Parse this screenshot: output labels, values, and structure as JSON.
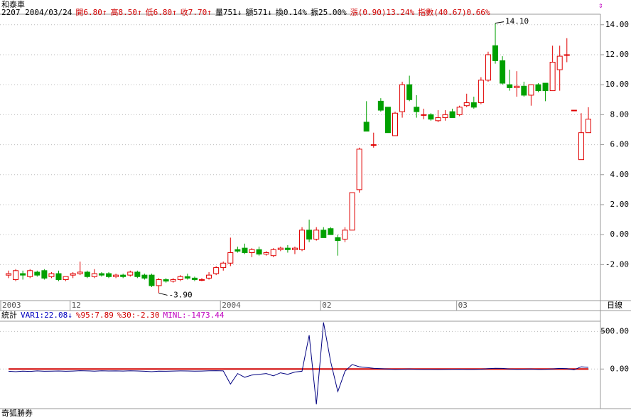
{
  "chart_data": {
    "type": "candlestick",
    "title": "和泰車",
    "info": [
      {
        "text": "2207 2004/03/24",
        "color": "#000000"
      },
      {
        "text": "開6.80↑",
        "color": "#d00000"
      },
      {
        "text": "高8.50↑",
        "color": "#d00000"
      },
      {
        "text": "低6.80↑",
        "color": "#d00000"
      },
      {
        "text": "收7.70↑",
        "color": "#d00000"
      },
      {
        "text": "量751↓",
        "color": "#000000"
      },
      {
        "text": "額571↓",
        "color": "#000000"
      },
      {
        "text": "換0.14%",
        "color": "#000000"
      },
      {
        "text": "振25.00%",
        "color": "#000000"
      },
      {
        "text": "漲(0.90)13.24%",
        "color": "#d00000"
      },
      {
        "text": "指數(40.67)0.66%",
        "color": "#d00000"
      }
    ],
    "period": "日線",
    "footer": "奇狐勝券",
    "up_color": "#e00000",
    "down_color": "#00a000",
    "ylim": [
      -4.4,
      14.7
    ],
    "yticks": [
      {
        "value": 14,
        "label": "14.00"
      },
      {
        "value": 12,
        "label": "12.00"
      },
      {
        "value": 10,
        "label": "10.00"
      },
      {
        "value": 8,
        "label": "8.00"
      },
      {
        "value": 6,
        "label": "6.00"
      },
      {
        "value": 4,
        "label": "4.00"
      },
      {
        "value": 2,
        "label": "2.00"
      },
      {
        "value": 0,
        "label": "0.00"
      },
      {
        "value": -2,
        "label": "-2.00"
      }
    ],
    "annotations": [
      {
        "index": 68,
        "value": 14.1,
        "label": "14.10"
      },
      {
        "index": 21,
        "value": -3.9,
        "label": "-3.90"
      }
    ],
    "categories": [
      "2003",
      null,
      null,
      null,
      null,
      null,
      null,
      null,
      null,
      "12",
      null,
      null,
      null,
      null,
      null,
      null,
      null,
      null,
      null,
      null,
      null,
      null,
      null,
      null,
      null,
      null,
      null,
      null,
      null,
      null,
      "2004",
      null,
      null,
      null,
      null,
      null,
      null,
      null,
      null,
      null,
      null,
      null,
      null,
      null,
      "02",
      null,
      null,
      null,
      null,
      null,
      null,
      null,
      null,
      null,
      null,
      null,
      null,
      null,
      null,
      null,
      null,
      null,
      null,
      "03",
      null,
      null,
      null,
      null,
      null,
      null,
      null,
      null,
      null,
      null,
      null,
      null,
      null,
      null,
      null,
      null,
      null,
      null
    ],
    "candles": [
      [
        -2.7,
        -2.4,
        -2.9,
        -2.6
      ],
      [
        -3.0,
        -2.3,
        -3.1,
        -2.4
      ],
      [
        -2.6,
        -2.4,
        -3.0,
        -2.7
      ],
      [
        -2.8,
        -2.3,
        -2.9,
        -2.4
      ],
      [
        -2.5,
        -2.4,
        -2.8,
        -2.7
      ],
      [
        -2.4,
        -2.3,
        -3.0,
        -2.9
      ],
      [
        -2.8,
        -2.5,
        -2.9,
        -2.6
      ],
      [
        -2.6,
        -2.4,
        -3.1,
        -3.0
      ],
      [
        -3.0,
        -2.8,
        -3.1,
        -2.8
      ],
      [
        -2.7,
        -2.5,
        -2.9,
        -2.6
      ],
      [
        -2.6,
        -1.8,
        -2.7,
        -2.5
      ],
      [
        -2.5,
        -2.4,
        -2.9,
        -2.8
      ],
      [
        -2.8,
        -2.3,
        -2.9,
        -2.6
      ],
      [
        -2.6,
        -2.5,
        -2.8,
        -2.7
      ],
      [
        -2.6,
        -2.5,
        -2.9,
        -2.8
      ],
      [
        -2.8,
        -2.6,
        -2.9,
        -2.7
      ],
      [
        -2.7,
        -2.6,
        -2.9,
        -2.8
      ],
      [
        -2.7,
        -2.4,
        -2.8,
        -2.5
      ],
      [
        -2.5,
        -2.4,
        -2.9,
        -2.8
      ],
      [
        -2.7,
        -2.6,
        -3.0,
        -2.9
      ],
      [
        -2.7,
        -2.6,
        -3.5,
        -3.4
      ],
      [
        -3.4,
        -2.9,
        -3.9,
        -3.0
      ],
      [
        -3.0,
        -2.9,
        -3.2,
        -3.1
      ],
      [
        -3.1,
        -2.9,
        -3.2,
        -3.0
      ],
      [
        -3.0,
        -2.7,
        -3.1,
        -2.8
      ],
      [
        -2.8,
        -2.6,
        -3.0,
        -2.9
      ],
      [
        -2.9,
        -2.8,
        -3.1,
        -3.0
      ],
      [
        -3.0,
        -2.9,
        -3.1,
        -3.0
      ],
      [
        -2.9,
        -2.5,
        -3.0,
        -2.7
      ],
      [
        -2.6,
        -2.1,
        -2.7,
        -2.2
      ],
      [
        -2.2,
        -1.8,
        -2.4,
        -1.9
      ],
      [
        -1.9,
        -0.2,
        -2.1,
        -1.2
      ],
      [
        -1.0,
        -0.8,
        -1.2,
        -1.1
      ],
      [
        -0.9,
        -0.6,
        -1.3,
        -1.2
      ],
      [
        -1.2,
        -0.9,
        -1.5,
        -1.0
      ],
      [
        -1.0,
        -0.8,
        -1.4,
        -1.3
      ],
      [
        -1.3,
        -1.1,
        -1.4,
        -1.2
      ],
      [
        -1.4,
        -0.9,
        -1.5,
        -1.0
      ],
      [
        -1.0,
        -0.8,
        -1.1,
        -0.9
      ],
      [
        -0.9,
        -0.7,
        -1.2,
        -1.0
      ],
      [
        -1.0,
        -0.8,
        -1.3,
        -0.9
      ],
      [
        -1.0,
        0.5,
        -1.1,
        0.3
      ],
      [
        0.3,
        1.0,
        -0.5,
        -0.3
      ],
      [
        -0.3,
        0.5,
        -0.4,
        0.3
      ],
      [
        0.3,
        0.5,
        -0.1,
        -0.2
      ],
      [
        0.4,
        0.5,
        0.0,
        0.0
      ],
      [
        -0.2,
        0.0,
        -1.4,
        -0.4
      ],
      [
        -0.3,
        0.5,
        -0.5,
        0.3
      ],
      [
        0.3,
        2.8,
        0.3,
        2.8
      ],
      [
        3.0,
        5.8,
        2.8,
        5.7
      ],
      [
        7.5,
        8.9,
        6.9,
        6.9
      ],
      [
        6.0,
        6.8,
        5.8,
        6.0
      ],
      [
        8.9,
        9.1,
        8.2,
        8.3
      ],
      [
        8.5,
        8.5,
        6.8,
        6.8
      ],
      [
        6.6,
        8.2,
        6.6,
        8.1
      ],
      [
        8.2,
        10.2,
        7.8,
        10.0
      ],
      [
        10.0,
        10.6,
        8.9,
        9.0
      ],
      [
        8.5,
        9.3,
        7.8,
        8.2
      ],
      [
        8.0,
        8.4,
        7.7,
        8.0
      ],
      [
        8.0,
        8.1,
        7.6,
        7.7
      ],
      [
        7.6,
        8.3,
        7.5,
        7.8
      ],
      [
        7.8,
        8.3,
        7.6,
        8.0
      ],
      [
        8.2,
        8.4,
        7.8,
        7.8
      ],
      [
        8.0,
        8.6,
        7.9,
        8.5
      ],
      [
        8.6,
        9.4,
        8.5,
        8.8
      ],
      [
        8.8,
        9.2,
        8.4,
        8.5
      ],
      [
        8.8,
        10.5,
        8.7,
        10.3
      ],
      [
        10.3,
        12.2,
        10.2,
        12.0
      ],
      [
        12.6,
        14.1,
        11.4,
        11.6
      ],
      [
        11.6,
        11.9,
        10.0,
        10.1
      ],
      [
        10.0,
        11.0,
        9.6,
        9.8
      ],
      [
        9.8,
        10.9,
        9.2,
        9.9
      ],
      [
        9.9,
        10.2,
        9.2,
        9.3
      ],
      [
        9.3,
        10.0,
        8.6,
        10.0
      ],
      [
        10.0,
        10.1,
        9.5,
        9.6
      ],
      [
        10.1,
        10.1,
        8.9,
        9.6
      ],
      [
        9.6,
        12.6,
        9.6,
        11.5
      ],
      [
        11.0,
        12.6,
        9.6,
        11.9
      ],
      [
        12.0,
        13.1,
        11.5,
        12.0
      ],
      [
        8.3,
        8.3,
        8.3,
        8.3
      ],
      [
        5.0,
        8.1,
        5.0,
        6.8
      ],
      [
        6.8,
        8.5,
        6.8,
        7.7
      ]
    ],
    "indicator": {
      "header": [
        {
          "text": "統計",
          "color": "#000000"
        },
        {
          "text": "VAR1:22.08↓",
          "color": "#0000c0"
        },
        {
          "text": "%95:7.89",
          "color": "#d00000"
        },
        {
          "text": "%30:-2.30",
          "color": "#d00000"
        },
        {
          "text": "MINL:-1473.44",
          "color": "#c000c0"
        }
      ],
      "ylim": [
        -527,
        636
      ],
      "yticks": [
        {
          "value": 500,
          "label": "500.00"
        },
        {
          "value": 0,
          "label": "0.00"
        }
      ],
      "reference_line": 0,
      "reference_color": "#d00000",
      "color": "#000080",
      "values": [
        -30,
        -35,
        -28,
        -32,
        -25,
        -30,
        -28,
        -26,
        -30,
        -27,
        -22,
        -25,
        -28,
        -24,
        -26,
        -25,
        -27,
        -24,
        -26,
        -30,
        -35,
        -28,
        -30,
        -27,
        -25,
        -26,
        -28,
        -27,
        -24,
        -22,
        -25,
        -200,
        -60,
        -110,
        -80,
        -70,
        -60,
        -90,
        -50,
        -70,
        -40,
        -30,
        450,
        -470,
        620,
        100,
        -300,
        -30,
        60,
        30,
        20,
        10,
        5,
        0,
        -5,
        -2,
        0,
        -3,
        -5,
        -4,
        -6,
        -5,
        -3,
        -2,
        -4,
        -5,
        -2,
        5,
        10,
        8,
        0,
        -3,
        -2,
        0,
        -5,
        -3,
        2,
        8,
        5,
        -10,
        30,
        22.08
      ]
    }
  }
}
